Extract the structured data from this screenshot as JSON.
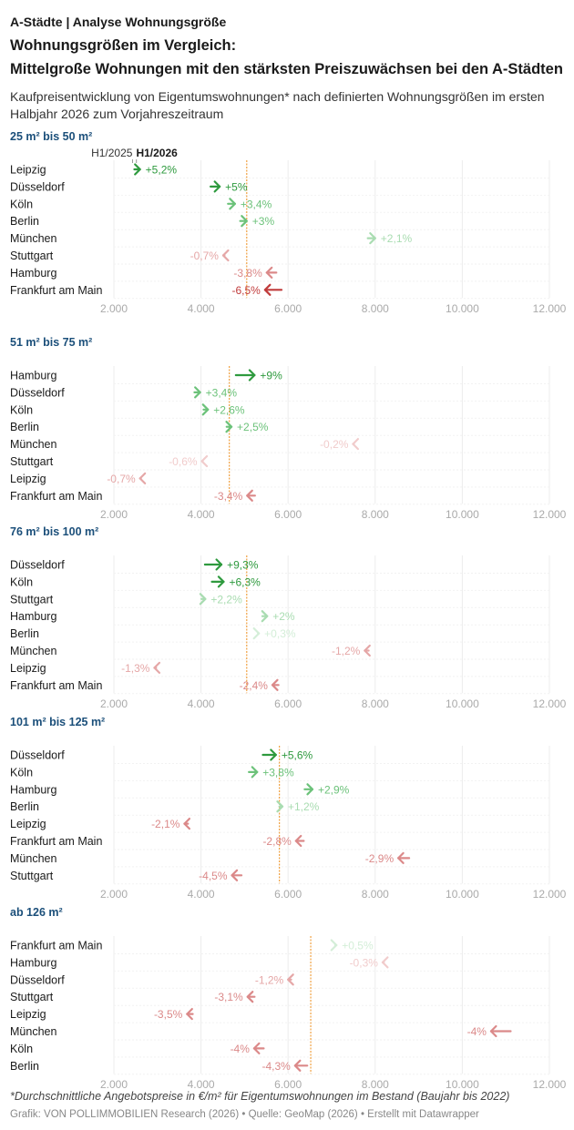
{
  "header": {
    "kicker": "A-Städte | Analyse Wohnungsgröße",
    "title_line1": "Wohnungsgrößen im Vergleich:",
    "title_line2": "Mittelgroße Wohnungen mit den stärksten Preiszuwächsen bei den A-Städten",
    "subtitle": "Kaufpreisentwicklung von Eigentumswohnungen* nach definierten Wohnungsgrößen im ersten Halbjahr 2026 zum Vorjahreszeitraum"
  },
  "legend": {
    "h1_2025": "H1/2025",
    "h1_2026": "H1/2026"
  },
  "colors": {
    "pos_strong": "#2e9a3e",
    "pos_mid": "#6cc27a",
    "pos_light": "#a9dcb1",
    "pos_faint": "#d4eed8",
    "neg_faint": "#f1cccc",
    "neg_light": "#e5a7a7",
    "neg_mid": "#db8989",
    "neg_strong": "#c03b3b",
    "average_line": "#f0a040",
    "axis_text": "#aaaaaa",
    "gridline": "#ececec",
    "section_title": "#1b4f7a"
  },
  "chart_data": [
    {
      "type": "arrow",
      "title": "25 m² bis 50 m²",
      "xlim": [
        2000,
        12000
      ],
      "ticks": [
        "2.000",
        "4.000",
        "6.000",
        "8.000",
        "10.000",
        "12.000"
      ],
      "average": 5050,
      "rows": [
        {
          "city": "Leipzig",
          "from": 2470,
          "to": 2600,
          "label": "+5,2%"
        },
        {
          "city": "Düsseldorf",
          "from": 4220,
          "to": 4430,
          "label": "+5%"
        },
        {
          "city": "Köln",
          "from": 4620,
          "to": 4780,
          "label": "+3,4%"
        },
        {
          "city": "Berlin",
          "from": 4900,
          "to": 5050,
          "label": "+3%"
        },
        {
          "city": "München",
          "from": 7830,
          "to": 8000,
          "label": "+2,1%"
        },
        {
          "city": "Stuttgart",
          "from": 4540,
          "to": 4510,
          "label": "-0,7%"
        },
        {
          "city": "Hamburg",
          "from": 5730,
          "to": 5510,
          "label": "-3,8%"
        },
        {
          "city": "Frankfurt am Main",
          "from": 5850,
          "to": 5470,
          "label": "-6,5%"
        }
      ]
    },
    {
      "type": "arrow",
      "title": "51 m² bis 75 m²",
      "xlim": [
        2000,
        12000
      ],
      "ticks": [
        "2.000",
        "4.000",
        "6.000",
        "8.000",
        "10.000",
        "12.000"
      ],
      "average": 4650,
      "rows": [
        {
          "city": "Hamburg",
          "from": 4800,
          "to": 5230,
          "label": "+9%"
        },
        {
          "city": "Düsseldorf",
          "from": 3850,
          "to": 3980,
          "label": "+3,4%"
        },
        {
          "city": "Köln",
          "from": 4060,
          "to": 4160,
          "label": "+2,6%"
        },
        {
          "city": "Berlin",
          "from": 4590,
          "to": 4700,
          "label": "+2,5%"
        },
        {
          "city": "München",
          "from": 7510,
          "to": 7490,
          "label": "-0,2%"
        },
        {
          "city": "Stuttgart",
          "from": 4040,
          "to": 4020,
          "label": "-0,6%"
        },
        {
          "city": "Leipzig",
          "from": 2620,
          "to": 2600,
          "label": "-0,7%"
        },
        {
          "city": "Frankfurt am Main",
          "from": 5240,
          "to": 5060,
          "label": "-3,4%"
        }
      ]
    },
    {
      "type": "arrow",
      "title": "76 m² bis 100 m²",
      "xlim": [
        2000,
        12000
      ],
      "ticks": [
        "2.000",
        "4.000",
        "6.000",
        "8.000",
        "10.000",
        "12.000"
      ],
      "average": 5050,
      "rows": [
        {
          "city": "Düsseldorf",
          "from": 4090,
          "to": 4470,
          "label": "+9,3%"
        },
        {
          "city": "Köln",
          "from": 4250,
          "to": 4520,
          "label": "+6,3%"
        },
        {
          "city": "Stuttgart",
          "from": 4010,
          "to": 4100,
          "label": "+2,2%"
        },
        {
          "city": "Hamburg",
          "from": 5410,
          "to": 5520,
          "label": "+2%"
        },
        {
          "city": "Berlin",
          "from": 5310,
          "to": 5330,
          "label": "+0,3%"
        },
        {
          "city": "München",
          "from": 7850,
          "to": 7760,
          "label": "-1,2%"
        },
        {
          "city": "Leipzig",
          "from": 2970,
          "to": 2930,
          "label": "-1,3%"
        },
        {
          "city": "Frankfurt am Main",
          "from": 5780,
          "to": 5640,
          "label": "-2,4%"
        }
      ]
    },
    {
      "type": "arrow",
      "title": "101 m² bis 125 m²",
      "xlim": [
        2000,
        12000
      ],
      "ticks": [
        "2.000",
        "4.000",
        "6.000",
        "8.000",
        "10.000",
        "12.000"
      ],
      "average": 5800,
      "rows": [
        {
          "city": "Düsseldorf",
          "from": 5420,
          "to": 5720,
          "label": "+5,6%"
        },
        {
          "city": "Köln",
          "from": 5100,
          "to": 5290,
          "label": "+3,8%"
        },
        {
          "city": "Hamburg",
          "from": 6380,
          "to": 6560,
          "label": "+2,9%"
        },
        {
          "city": "Berlin",
          "from": 5800,
          "to": 5870,
          "label": "+1,2%"
        },
        {
          "city": "Leipzig",
          "from": 3700,
          "to": 3620,
          "label": "-2,1%"
        },
        {
          "city": "Frankfurt am Main",
          "from": 6360,
          "to": 6180,
          "label": "-2,8%"
        },
        {
          "city": "München",
          "from": 8780,
          "to": 8530,
          "label": "-2,9%"
        },
        {
          "city": "Stuttgart",
          "from": 4930,
          "to": 4710,
          "label": "-4,5%"
        }
      ]
    },
    {
      "type": "arrow",
      "title": "ab 126 m²",
      "xlim": [
        2000,
        12000
      ],
      "ticks": [
        "2.000",
        "4.000",
        "6.000",
        "8.000",
        "10.000",
        "12.000"
      ],
      "average": 6520,
      "rows": [
        {
          "city": "Frankfurt am Main",
          "from": 7080,
          "to": 7110,
          "label": "+0,5%"
        },
        {
          "city": "Hamburg",
          "from": 8200,
          "to": 8170,
          "label": "-0,3%"
        },
        {
          "city": "Düsseldorf",
          "from": 6070,
          "to": 6000,
          "label": "-1,2%"
        },
        {
          "city": "Stuttgart",
          "from": 5230,
          "to": 5070,
          "label": "-3,1%"
        },
        {
          "city": "Leipzig",
          "from": 3810,
          "to": 3680,
          "label": "-3,5%"
        },
        {
          "city": "München",
          "from": 11110,
          "to": 10660,
          "label": "-4%"
        },
        {
          "city": "Köln",
          "from": 5440,
          "to": 5220,
          "label": "-4%"
        },
        {
          "city": "Berlin",
          "from": 6440,
          "to": 6160,
          "label": "-4,3%"
        }
      ]
    }
  ],
  "footer": {
    "footnote": "*Durchschnittliche Angebotspreise in €/m² für Eigentumswohnungen im Bestand (Baujahr bis 2022)",
    "credits": "Grafik: VON POLLIMMOBILIEN Research (2026) • Quelle: GeoMap (2026) • Erstellt mit Datawrapper"
  }
}
